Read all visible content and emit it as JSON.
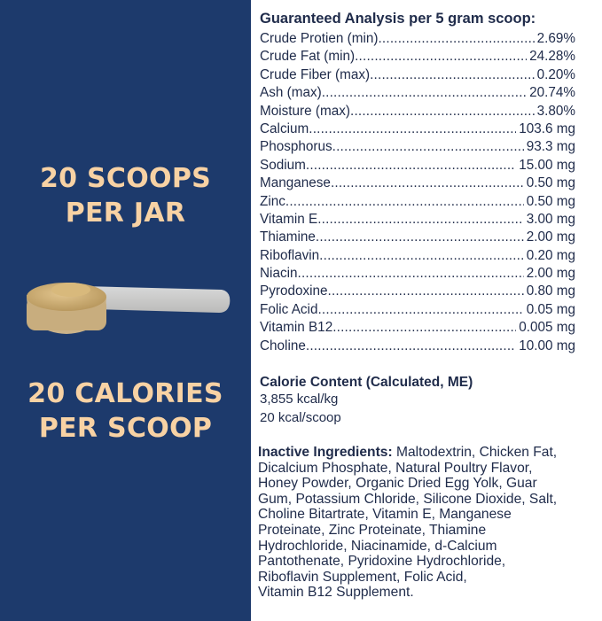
{
  "colors": {
    "panel": "#1d3a6c",
    "headline": "#f8d2a4",
    "text": "#1f2b4a"
  },
  "left_panel": {
    "headline_top": [
      "20 SCOOPS",
      "PER JAR"
    ],
    "headline_bottom": [
      "20 CALORIES",
      "PER SCOOP"
    ],
    "image": "measuring-scoop-with-powder"
  },
  "analysis": {
    "title": "Guaranteed Analysis per 5 gram scoop:",
    "rows": [
      {
        "name": "Crude Protien (min)",
        "value": "2.69%"
      },
      {
        "name": "Crude Fat (min)",
        "value": "24.28%"
      },
      {
        "name": "Crude Fiber (max)",
        "value": "0.20%"
      },
      {
        "name": "Ash (max)",
        "value": "20.74%"
      },
      {
        "name": "Moisture (max)",
        "value": "3.80%"
      },
      {
        "name": "Calcium",
        "value": "103.6 mg"
      },
      {
        "name": "Phosphorus",
        "value": "93.3 mg"
      },
      {
        "name": "Sodium",
        "value": "15.00 mg"
      },
      {
        "name": "Manganese",
        "value": "0.50 mg"
      },
      {
        "name": "Zinc",
        "value": "0.50 mg"
      },
      {
        "name": "Vitamin E",
        "value": "3.00 mg"
      },
      {
        "name": "Thiamine",
        "value": "2.00 mg"
      },
      {
        "name": "Riboflavin",
        "value": "0.20 mg"
      },
      {
        "name": "Niacin",
        "value": "2.00 mg"
      },
      {
        "name": "Pyrodoxine",
        "value": "0.80 mg"
      },
      {
        "name": "Folic Acid",
        "value": "0.05 mg"
      },
      {
        "name": "Vitamin B12",
        "value": "0.005 mg"
      },
      {
        "name": "Choline",
        "value": "10.00 mg"
      }
    ]
  },
  "calorie": {
    "title": "Calorie Content (Calculated, ME)",
    "lines": [
      "3,855 kcal/kg",
      "20 kcal/scoop"
    ]
  },
  "inactive": {
    "label": "Inactive Ingredients:",
    "lines": [
      " Maltodextrin, Chicken Fat,",
      "Dicalcium Phosphate, Natural Poultry Flavor,",
      "Honey Powder, Organic Dried Egg Yolk, Guar",
      "Gum, Potassium Chloride, Silicone Dioxide, Salt,",
      "Choline Bitartrate, Vitamin E, Manganese",
      "Proteinate, Zinc Proteinate, Thiamine",
      "Hydrochloride, Niacinamide, d-Calcium",
      "Pantothenate, Pyridoxine Hydrochloride,",
      "Riboflavin Supplement, Folic Acid,",
      "Vitamin B12 Supplement."
    ]
  }
}
